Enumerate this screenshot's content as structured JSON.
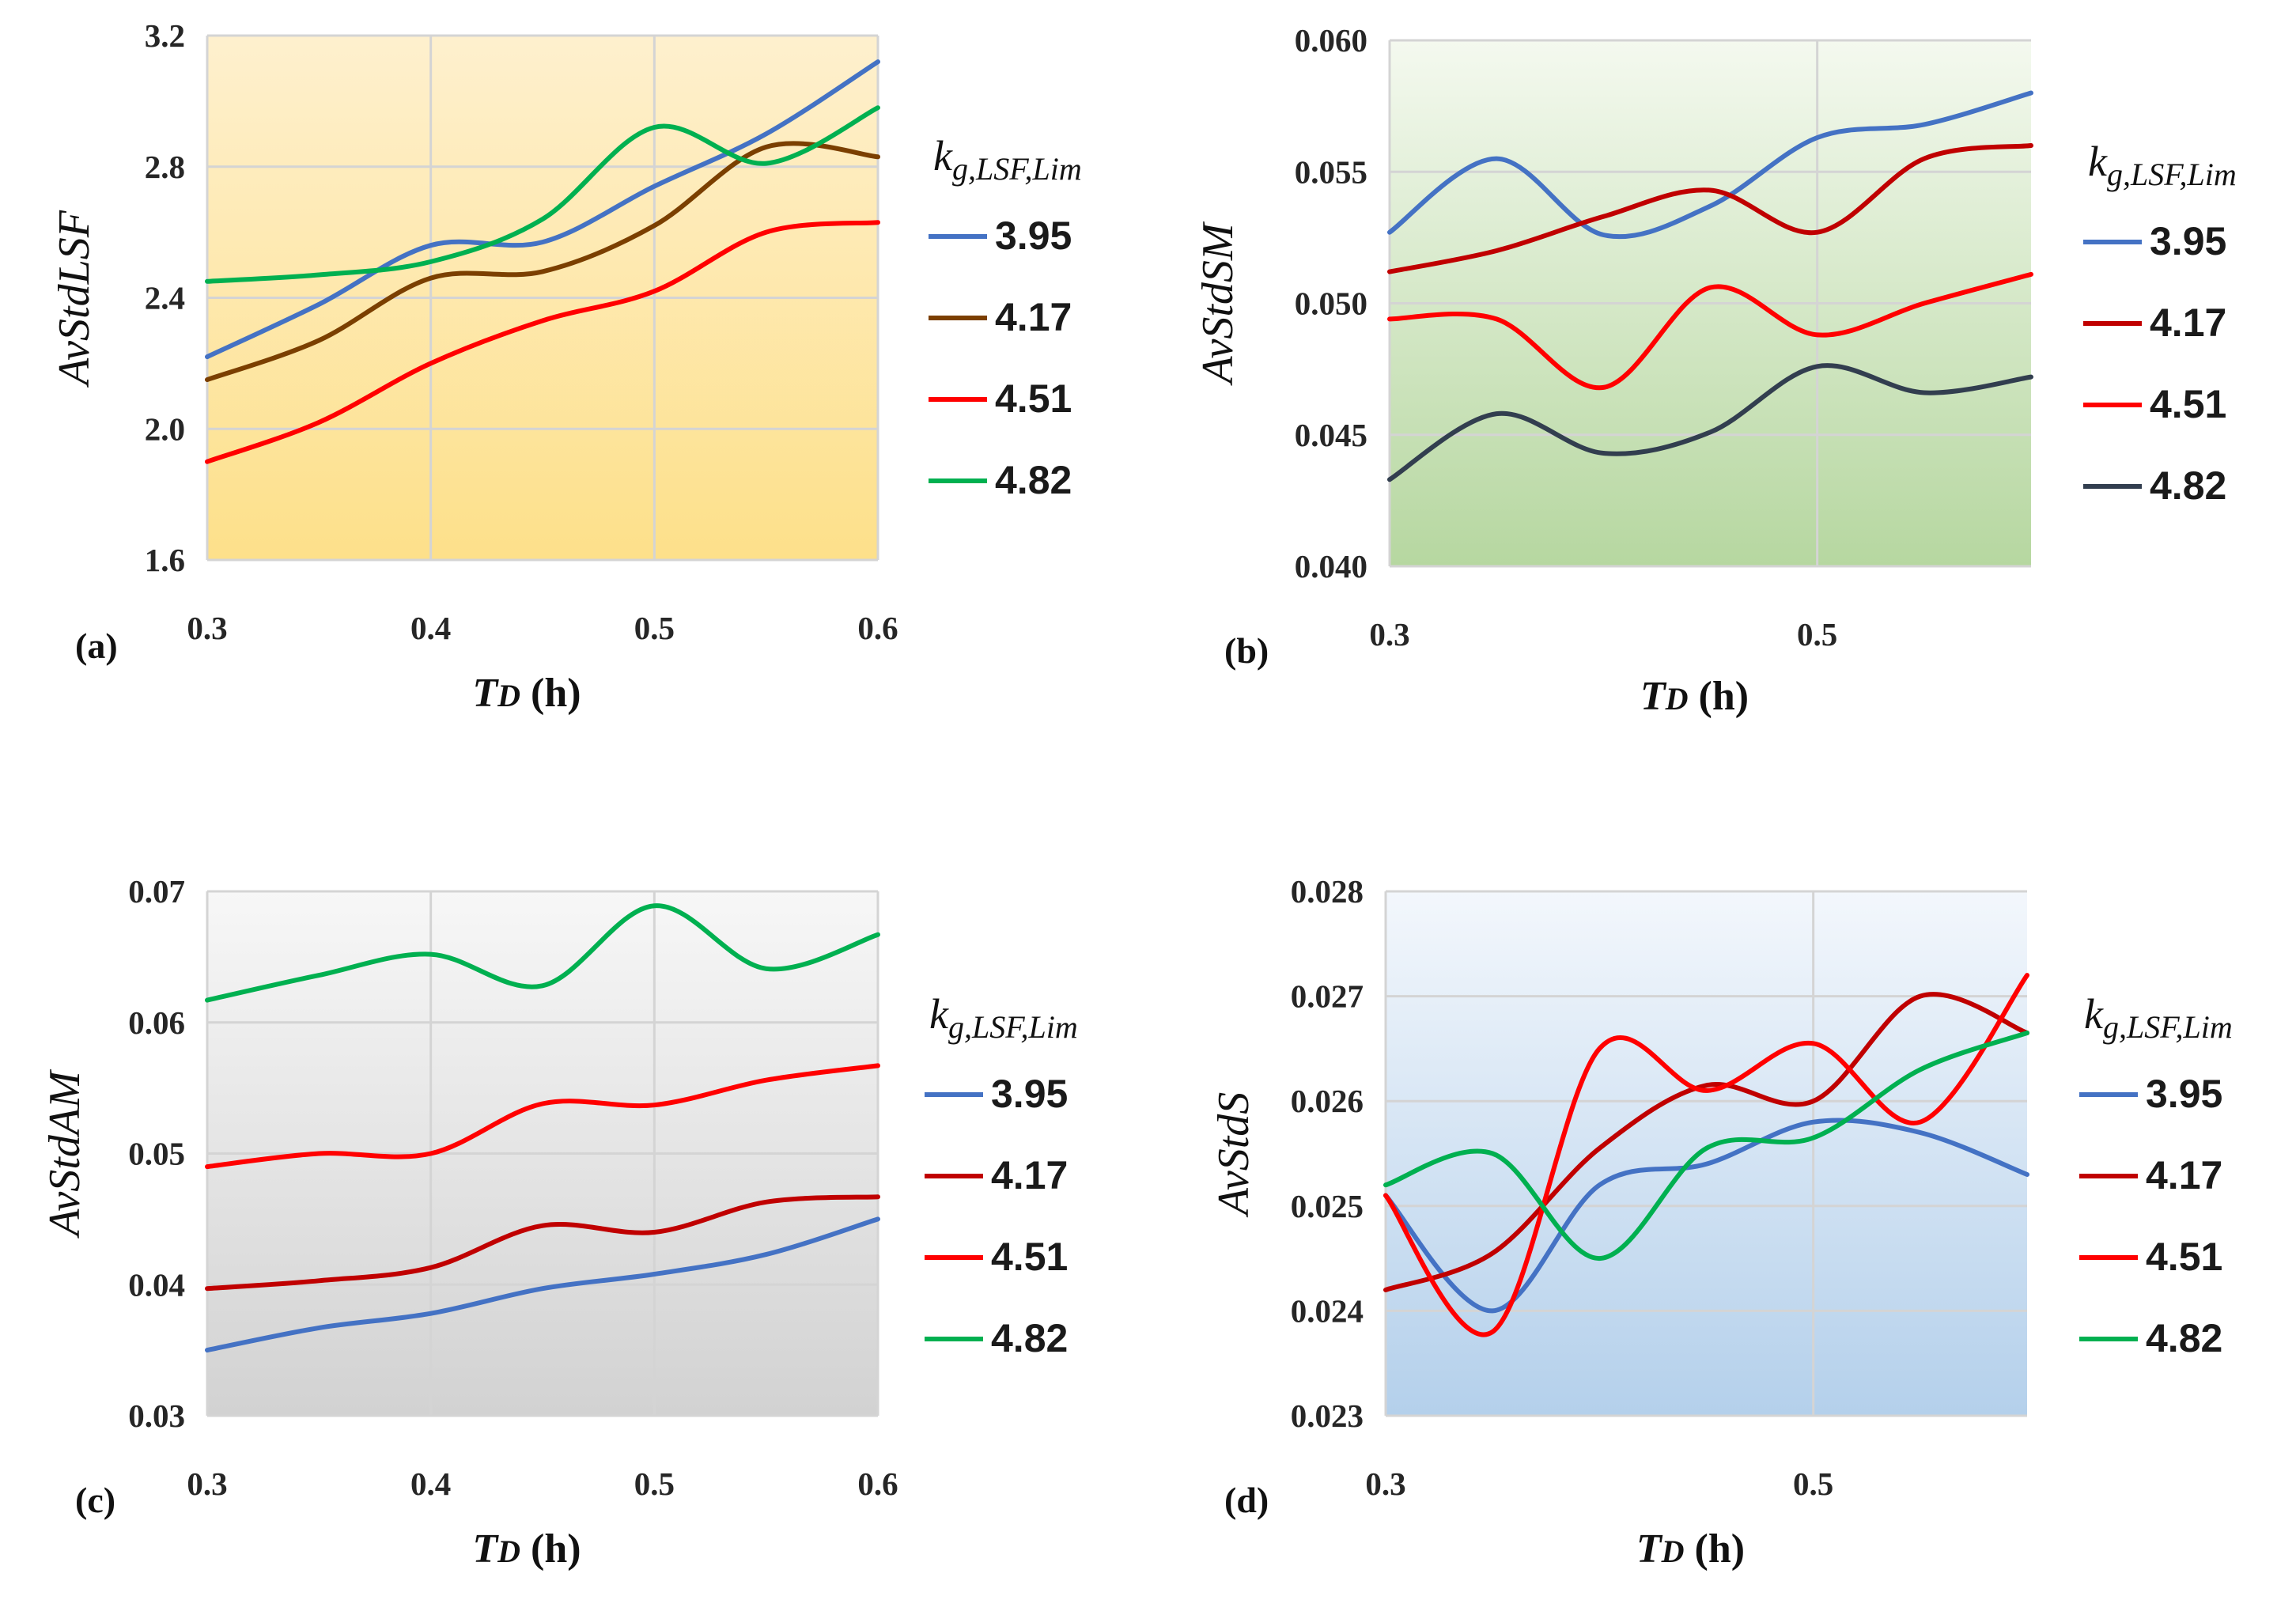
{
  "legend_title": {
    "main": "k",
    "sub": "g,LSF,Lim"
  },
  "xlabel": {
    "main": "T",
    "sub": "D",
    "unit": " (h)"
  },
  "chart_data": [
    {
      "id": "a",
      "panel_label": "(a)",
      "type": "line",
      "title": "",
      "ylabel": "AvStdLSF",
      "xlim": [
        0.3,
        0.6
      ],
      "ylim": [
        1.6,
        3.2
      ],
      "xticks": [
        "0.3",
        "0.4",
        "0.5",
        "0.6"
      ],
      "yticks": [
        "1.6",
        "2.0",
        "2.4",
        "2.8",
        "3.2"
      ],
      "background": [
        "#fef0ce",
        "#fde08a"
      ],
      "x": [
        0.3,
        0.35,
        0.4,
        0.45,
        0.5,
        0.55,
        0.6
      ],
      "series": [
        {
          "name": "3.95",
          "color": "#4472c4",
          "values": [
            2.22,
            2.38,
            2.56,
            2.57,
            2.74,
            2.9,
            3.12
          ]
        },
        {
          "name": "4.17",
          "color": "#7b3f00",
          "values": [
            2.15,
            2.27,
            2.46,
            2.48,
            2.62,
            2.86,
            2.83
          ]
        },
        {
          "name": "4.51",
          "color": "#ff0000",
          "values": [
            1.9,
            2.02,
            2.2,
            2.33,
            2.42,
            2.6,
            2.63
          ]
        },
        {
          "name": "4.82",
          "color": "#00b050",
          "values": [
            2.45,
            2.47,
            2.51,
            2.64,
            2.92,
            2.81,
            2.98
          ]
        }
      ]
    },
    {
      "id": "b",
      "panel_label": "(b)",
      "type": "line",
      "title": "",
      "ylabel": "AvStdSM",
      "xlim": [
        0.3,
        0.6
      ],
      "ylim": [
        0.04,
        0.06
      ],
      "xticks": [
        "0.3",
        "0.5"
      ],
      "xtick_values": [
        0.3,
        0.5
      ],
      "yticks": [
        "0.040",
        "0.045",
        "0.050",
        "0.055",
        "0.060"
      ],
      "background": [
        "#f4f9ef",
        "#b6d7a0"
      ],
      "x": [
        0.3,
        0.35,
        0.4,
        0.45,
        0.5,
        0.55,
        0.6
      ],
      "series": [
        {
          "name": "3.95",
          "color": "#4472c4",
          "values": [
            0.0527,
            0.0555,
            0.0526,
            0.0537,
            0.0563,
            0.0568,
            0.058
          ]
        },
        {
          "name": "4.17",
          "color": "#c00000",
          "values": [
            0.0512,
            0.052,
            0.0533,
            0.0543,
            0.0527,
            0.0555,
            0.056
          ]
        },
        {
          "name": "4.51",
          "color": "#ff0000",
          "values": [
            0.0494,
            0.0494,
            0.0468,
            0.0506,
            0.0488,
            0.05,
            0.0511
          ]
        },
        {
          "name": "4.82",
          "color": "#323e4f",
          "values": [
            0.0433,
            0.0458,
            0.0443,
            0.0451,
            0.0476,
            0.0466,
            0.0472
          ]
        }
      ]
    },
    {
      "id": "c",
      "panel_label": "(c)",
      "type": "line",
      "title": "",
      "ylabel": "AvStdAM",
      "xlim": [
        0.3,
        0.6
      ],
      "ylim": [
        0.03,
        0.07
      ],
      "xticks": [
        "0.3",
        "0.4",
        "0.5",
        "0.6"
      ],
      "yticks": [
        "0.03",
        "0.04",
        "0.05",
        "0.06",
        "0.07"
      ],
      "background": [
        "#f7f7f7",
        "#d2d2d2"
      ],
      "x": [
        0.3,
        0.35,
        0.4,
        0.45,
        0.5,
        0.55,
        0.6
      ],
      "series": [
        {
          "name": "3.95",
          "color": "#4472c4",
          "values": [
            0.035,
            0.0367,
            0.0378,
            0.0397,
            0.0408,
            0.0423,
            0.045
          ]
        },
        {
          "name": "4.17",
          "color": "#c00000",
          "values": [
            0.0397,
            0.0403,
            0.0413,
            0.0445,
            0.044,
            0.0463,
            0.0467
          ]
        },
        {
          "name": "4.51",
          "color": "#ff0000",
          "values": [
            0.049,
            0.05,
            0.05,
            0.0538,
            0.0537,
            0.0556,
            0.0567
          ]
        },
        {
          "name": "4.82",
          "color": "#00b050",
          "values": [
            0.0617,
            0.0636,
            0.0652,
            0.0628,
            0.0689,
            0.0641,
            0.0667
          ]
        }
      ]
    },
    {
      "id": "d",
      "panel_label": "(d)",
      "type": "line",
      "title": "",
      "ylabel": "AvStdS",
      "xlim": [
        0.3,
        0.6
      ],
      "ylim": [
        0.023,
        0.028
      ],
      "xticks": [
        "0.3",
        "0.5"
      ],
      "xtick_values": [
        0.3,
        0.5
      ],
      "yticks": [
        "0.023",
        "0.024",
        "0.025",
        "0.026",
        "0.027",
        "0.028"
      ],
      "background": [
        "#f3f7fc",
        "#b4d0eb"
      ],
      "x": [
        0.3,
        0.35,
        0.4,
        0.45,
        0.5,
        0.55,
        0.6
      ],
      "series": [
        {
          "name": "3.95",
          "color": "#4472c4",
          "values": [
            0.0251,
            0.024,
            0.0252,
            0.0254,
            0.0258,
            0.0257,
            0.0253
          ]
        },
        {
          "name": "4.17",
          "color": "#c00000",
          "values": [
            0.0242,
            0.02455,
            0.02555,
            0.02615,
            0.026,
            0.027,
            0.02665
          ]
        },
        {
          "name": "4.51",
          "color": "#ff0000",
          "values": [
            0.0251,
            0.0238,
            0.0265,
            0.0261,
            0.02655,
            0.0258,
            0.0272
          ]
        },
        {
          "name": "4.82",
          "color": "#00b050",
          "values": [
            0.0252,
            0.0255,
            0.0245,
            0.02555,
            0.02565,
            0.0263,
            0.02665
          ]
        }
      ]
    }
  ]
}
